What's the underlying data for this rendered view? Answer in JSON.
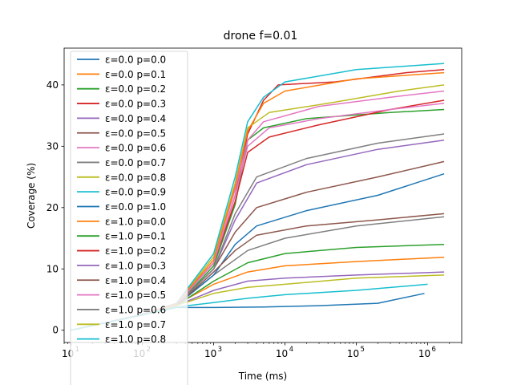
{
  "chart_data": {
    "type": "line",
    "title": "drone f=0.01",
    "xlabel": "Time (ms)",
    "ylabel": "Coverage (%)",
    "xscale": "log",
    "xlim": [
      8,
      3000000
    ],
    "ylim": [
      -2,
      46
    ],
    "xticks": [
      {
        "value": 10,
        "base": "10",
        "exp": "1"
      },
      {
        "value": 100,
        "base": "10",
        "exp": "2"
      },
      {
        "value": 1000,
        "base": "10",
        "exp": "3"
      },
      {
        "value": 10000,
        "base": "10",
        "exp": "4"
      },
      {
        "value": 100000,
        "base": "10",
        "exp": "5"
      },
      {
        "value": 1000000,
        "base": "10",
        "exp": "6"
      }
    ],
    "yticks": [
      0,
      10,
      20,
      30,
      40
    ],
    "grid": false,
    "legend_position": "upper-left",
    "series": [
      {
        "name": "ε=0.0 p=0.0",
        "color": "#1f77b4",
        "x": [
          10,
          100,
          300,
          1000,
          5000,
          30000,
          200000,
          900000
        ],
        "y": [
          0,
          2.5,
          3.7,
          3.7,
          3.8,
          4.0,
          4.4,
          6.0
        ]
      },
      {
        "name": "ε=0.0 p=0.1",
        "color": "#ff7f0e",
        "x": [
          10,
          100,
          300,
          1000,
          3000,
          10000,
          100000,
          1700000
        ],
        "y": [
          0,
          2.5,
          4.2,
          7.5,
          9.5,
          10.5,
          11.2,
          11.9
        ]
      },
      {
        "name": "ε=0.0 p=0.2",
        "color": "#2ca02c",
        "x": [
          10,
          100,
          300,
          1000,
          2000,
          3000,
          5000,
          20000,
          300000,
          1700000
        ],
        "y": [
          0,
          2.5,
          4.0,
          10.5,
          20.5,
          31.0,
          33.0,
          34.5,
          35.5,
          36.0
        ]
      },
      {
        "name": "ε=0.0 p=0.3",
        "color": "#d62728",
        "x": [
          10,
          100,
          300,
          1000,
          2000,
          3000,
          5000,
          8000,
          50000,
          500000,
          1700000
        ],
        "y": [
          0,
          2.6,
          4.3,
          11.0,
          22.0,
          32.0,
          37.5,
          40.0,
          40.5,
          42.0,
          42.5
        ]
      },
      {
        "name": "ε=0.0 p=0.4",
        "color": "#9467bd",
        "x": [
          10,
          100,
          300,
          1000,
          3000,
          10000,
          100000,
          1700000
        ],
        "y": [
          0,
          2.5,
          4.0,
          6.5,
          8.0,
          8.5,
          9.0,
          9.5
        ]
      },
      {
        "name": "ε=0.0 p=0.5",
        "color": "#8c564b",
        "x": [
          10,
          100,
          300,
          1000,
          2000,
          4000,
          20000,
          200000,
          1700000
        ],
        "y": [
          0,
          2.5,
          4.1,
          10.0,
          16.0,
          20.0,
          22.5,
          25.0,
          27.5
        ]
      },
      {
        "name": "ε=0.0 p=0.6",
        "color": "#e377c2",
        "x": [
          10,
          100,
          300,
          1000,
          2000,
          3000,
          5000,
          30000,
          300000,
          1700000
        ],
        "y": [
          0,
          2.6,
          4.2,
          11.5,
          23.0,
          31.0,
          34.0,
          36.5,
          38.0,
          39.0
        ]
      },
      {
        "name": "ε=0.0 p=0.7",
        "color": "#7f7f7f",
        "x": [
          10,
          100,
          300,
          1000,
          3000,
          10000,
          100000,
          1700000
        ],
        "y": [
          0,
          2.5,
          4.0,
          9.0,
          13.0,
          15.0,
          17.0,
          18.5
        ]
      },
      {
        "name": "ε=0.0 p=0.8",
        "color": "#bcbd22",
        "x": [
          10,
          100,
          300,
          1000,
          2000,
          3000,
          6000,
          40000,
          400000,
          1700000
        ],
        "y": [
          0,
          2.6,
          4.3,
          12.0,
          24.0,
          33.0,
          35.5,
          37.0,
          39.0,
          40.0
        ]
      },
      {
        "name": "ε=0.0 p=0.9",
        "color": "#17becf",
        "x": [
          10,
          100,
          300,
          1000,
          2000,
          3000,
          5000,
          10000,
          100000,
          1700000
        ],
        "y": [
          0,
          2.6,
          4.4,
          12.5,
          25.0,
          34.0,
          38.0,
          40.5,
          42.5,
          43.5
        ]
      },
      {
        "name": "ε=0.0 p=1.0",
        "color": "#1f77b4",
        "x": [
          10,
          100,
          300,
          1000,
          2000,
          4000,
          20000,
          200000,
          1700000
        ],
        "y": [
          0,
          2.5,
          4.1,
          9.0,
          14.0,
          17.0,
          19.5,
          22.0,
          25.5
        ]
      },
      {
        "name": "ε=1.0 p=0.0",
        "color": "#ff7f0e",
        "x": [
          10,
          100,
          300,
          1000,
          2000,
          3000,
          5000,
          10000,
          100000,
          1700000
        ],
        "y": [
          0,
          2.6,
          4.3,
          11.5,
          23.5,
          32.5,
          37.0,
          39.0,
          41.0,
          42.0
        ]
      },
      {
        "name": "ε=1.0 p=0.1",
        "color": "#2ca02c",
        "x": [
          10,
          100,
          300,
          1000,
          3000,
          10000,
          100000,
          1700000
        ],
        "y": [
          0,
          2.5,
          4.0,
          8.0,
          11.0,
          12.5,
          13.5,
          14.0
        ]
      },
      {
        "name": "ε=1.0 p=0.2",
        "color": "#d62728",
        "x": [
          10,
          100,
          300,
          1000,
          2000,
          3000,
          6000,
          30000,
          300000,
          1700000
        ],
        "y": [
          0,
          2.6,
          4.2,
          11.0,
          21.0,
          29.0,
          31.5,
          33.5,
          36.0,
          37.5
        ]
      },
      {
        "name": "ε=1.0 p=0.3",
        "color": "#9467bd",
        "x": [
          10,
          100,
          300,
          1000,
          2000,
          4000,
          20000,
          200000,
          1700000
        ],
        "y": [
          0,
          2.5,
          4.1,
          10.0,
          18.0,
          24.0,
          27.0,
          29.5,
          31.0
        ]
      },
      {
        "name": "ε=1.0 p=0.4",
        "color": "#8c564b",
        "x": [
          10,
          100,
          300,
          1000,
          2000,
          4000,
          20000,
          200000,
          1700000
        ],
        "y": [
          0,
          2.5,
          4.0,
          9.5,
          13.0,
          15.5,
          17.0,
          18.0,
          19.0
        ]
      },
      {
        "name": "ε=1.0 p=0.5",
        "color": "#e377c2",
        "x": [
          10,
          100,
          300,
          1000,
          2000,
          3000,
          6000,
          30000,
          300000,
          1700000
        ],
        "y": [
          0,
          2.6,
          4.2,
          11.0,
          22.0,
          30.0,
          33.0,
          34.5,
          36.0,
          37.0
        ]
      },
      {
        "name": "ε=1.0 p=0.6",
        "color": "#7f7f7f",
        "x": [
          10,
          100,
          300,
          1000,
          2000,
          4000,
          20000,
          200000,
          1700000
        ],
        "y": [
          0,
          2.5,
          4.1,
          10.0,
          19.0,
          25.0,
          28.0,
          30.5,
          32.0
        ]
      },
      {
        "name": "ε=1.0 p=0.7",
        "color": "#bcbd22",
        "x": [
          10,
          100,
          300,
          1000,
          3000,
          10000,
          100000,
          1700000
        ],
        "y": [
          0,
          2.5,
          4.0,
          6.0,
          7.0,
          7.5,
          8.5,
          9.0
        ]
      },
      {
        "name": "ε=1.0 p=0.8",
        "color": "#17becf",
        "x": [
          10,
          100,
          300,
          1000,
          3000,
          10000,
          100000,
          1000000
        ],
        "y": [
          0,
          2.5,
          3.8,
          4.5,
          5.2,
          5.8,
          6.5,
          7.5
        ]
      }
    ]
  }
}
